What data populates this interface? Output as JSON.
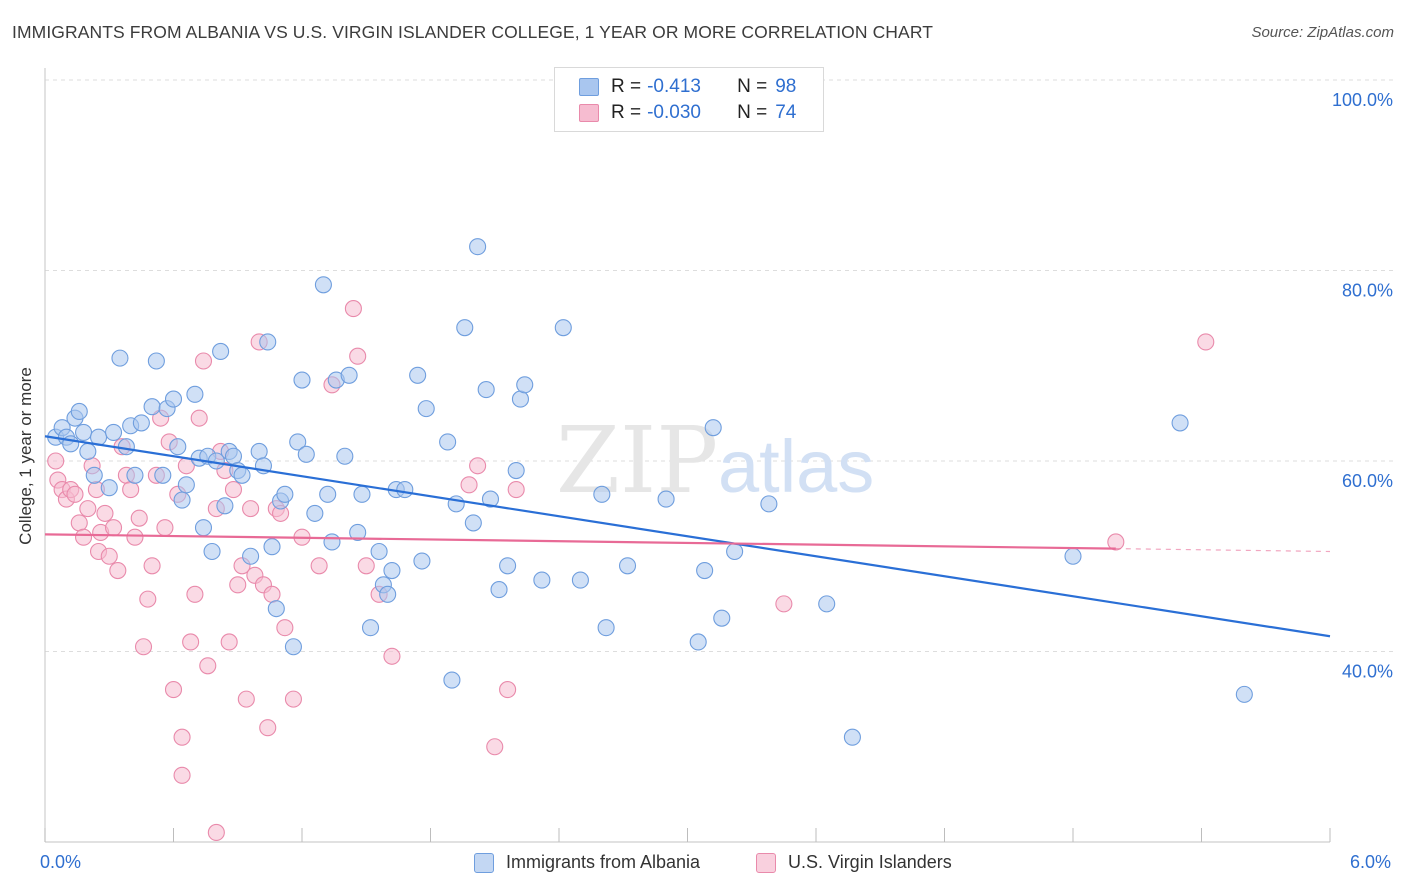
{
  "title": "IMMIGRANTS FROM ALBANIA VS U.S. VIRGIN ISLANDER COLLEGE, 1 YEAR OR MORE CORRELATION CHART",
  "source": "Source: ZipAtlas.com",
  "watermark": {
    "zip": "ZIP",
    "atlas": "atlas"
  },
  "legend": {
    "rows": [
      {
        "r_label": "R =",
        "r_value": "-0.413",
        "n_label": "N =",
        "n_value": "98"
      },
      {
        "r_label": "R =",
        "r_value": "-0.030",
        "n_label": "N =",
        "n_value": "74"
      }
    ]
  },
  "bottom_legend": [
    "Immigrants from Albania",
    "U.S. Virgin Islanders"
  ],
  "colors": {
    "blue_fill": "#a9c6ef",
    "blue_stroke": "#6f9ede",
    "blue_line": "#2a6fd6",
    "pink_fill": "#f6bcd0",
    "pink_stroke": "#e98aab",
    "pink_line": "#e86a96",
    "grid": "#dddddd",
    "axis_text": "#2f6fd0"
  },
  "chart_data": {
    "type": "scatter",
    "title": "IMMIGRANTS FROM ALBANIA VS U.S. VIRGIN ISLANDER COLLEGE, 1 YEAR OR MORE CORRELATION CHART",
    "xlabel": "",
    "ylabel": "College, 1 year or more",
    "xlim": [
      0,
      6
    ],
    "ylim": [
      20,
      100
    ],
    "x_tick_labels": [
      "0.0%",
      "6.0%"
    ],
    "y_ticks": [
      40,
      60,
      80,
      100
    ],
    "y_tick_labels": [
      "40.0%",
      "60.0%",
      "80.0%",
      "100.0%"
    ],
    "grid": true,
    "series": [
      {
        "name": "Immigrants from Albania",
        "color": "blue",
        "trend": {
          "x": [
            0,
            6
          ],
          "y": [
            62.6,
            41.6
          ]
        },
        "points": [
          [
            0.05,
            62.5
          ],
          [
            0.08,
            63.5
          ],
          [
            0.1,
            62.5
          ],
          [
            0.12,
            61.8
          ],
          [
            0.14,
            64.5
          ],
          [
            0.16,
            65.2
          ],
          [
            0.18,
            63
          ],
          [
            0.2,
            61
          ],
          [
            0.23,
            58.5
          ],
          [
            0.25,
            62.5
          ],
          [
            0.3,
            57.2
          ],
          [
            0.32,
            63
          ],
          [
            0.35,
            70.8
          ],
          [
            0.38,
            61.5
          ],
          [
            0.4,
            63.7
          ],
          [
            0.42,
            58.5
          ],
          [
            0.45,
            64
          ],
          [
            0.5,
            65.7
          ],
          [
            0.52,
            70.5
          ],
          [
            0.55,
            58.5
          ],
          [
            0.57,
            65.5
          ],
          [
            0.6,
            66.5
          ],
          [
            0.62,
            61.5
          ],
          [
            0.64,
            55.9
          ],
          [
            0.66,
            57.5
          ],
          [
            0.7,
            67
          ],
          [
            0.72,
            60.3
          ],
          [
            0.74,
            53
          ],
          [
            0.76,
            60.5
          ],
          [
            0.78,
            50.5
          ],
          [
            0.8,
            60
          ],
          [
            0.82,
            71.5
          ],
          [
            0.84,
            55.3
          ],
          [
            0.86,
            61
          ],
          [
            0.88,
            60.5
          ],
          [
            0.9,
            59
          ],
          [
            0.92,
            58.5
          ],
          [
            0.96,
            50
          ],
          [
            1.0,
            61
          ],
          [
            1.02,
            59.5
          ],
          [
            1.04,
            72.5
          ],
          [
            1.06,
            51
          ],
          [
            1.08,
            44.5
          ],
          [
            1.1,
            55.8
          ],
          [
            1.12,
            56.5
          ],
          [
            1.16,
            40.5
          ],
          [
            1.18,
            62
          ],
          [
            1.2,
            68.5
          ],
          [
            1.22,
            60.7
          ],
          [
            1.26,
            54.5
          ],
          [
            1.3,
            78.5
          ],
          [
            1.32,
            56.5
          ],
          [
            1.34,
            51.5
          ],
          [
            1.36,
            68.5
          ],
          [
            1.4,
            60.5
          ],
          [
            1.42,
            69
          ],
          [
            1.46,
            52.5
          ],
          [
            1.48,
            56.5
          ],
          [
            1.52,
            42.5
          ],
          [
            1.56,
            50.5
          ],
          [
            1.58,
            47
          ],
          [
            1.6,
            46
          ],
          [
            1.62,
            48.5
          ],
          [
            1.64,
            57
          ],
          [
            1.68,
            57
          ],
          [
            1.74,
            69
          ],
          [
            1.76,
            49.5
          ],
          [
            1.78,
            65.5
          ],
          [
            1.88,
            62
          ],
          [
            1.9,
            37
          ],
          [
            1.92,
            55.5
          ],
          [
            1.96,
            74
          ],
          [
            2.0,
            53.5
          ],
          [
            2.02,
            82.5
          ],
          [
            2.06,
            67.5
          ],
          [
            2.08,
            56
          ],
          [
            2.12,
            46.5
          ],
          [
            2.16,
            49
          ],
          [
            2.2,
            59
          ],
          [
            2.22,
            66.5
          ],
          [
            2.24,
            68
          ],
          [
            2.32,
            47.5
          ],
          [
            2.42,
            74
          ],
          [
            2.5,
            47.5
          ],
          [
            2.6,
            56.5
          ],
          [
            2.62,
            42.5
          ],
          [
            2.72,
            49
          ],
          [
            2.9,
            56
          ],
          [
            3.05,
            41
          ],
          [
            3.08,
            48.5
          ],
          [
            3.12,
            63.5
          ],
          [
            3.16,
            43.5
          ],
          [
            3.22,
            50.5
          ],
          [
            3.38,
            55.5
          ],
          [
            3.65,
            45
          ],
          [
            3.77,
            31
          ],
          [
            4.8,
            50
          ],
          [
            5.3,
            64
          ],
          [
            5.6,
            35.5
          ]
        ]
      },
      {
        "name": "U.S. Virgin Islanders",
        "color": "pink",
        "trend": {
          "x": [
            0,
            5.0
          ],
          "y": [
            52.3,
            50.8
          ]
        },
        "trend_dashed": {
          "x": [
            5.0,
            6.0
          ],
          "y": [
            50.8,
            50.5
          ]
        },
        "points": [
          [
            0.05,
            60
          ],
          [
            0.06,
            58
          ],
          [
            0.08,
            57
          ],
          [
            0.1,
            56
          ],
          [
            0.12,
            57
          ],
          [
            0.14,
            56.5
          ],
          [
            0.16,
            53.5
          ],
          [
            0.18,
            52
          ],
          [
            0.2,
            55
          ],
          [
            0.22,
            59.5
          ],
          [
            0.24,
            57
          ],
          [
            0.25,
            50.5
          ],
          [
            0.26,
            52.5
          ],
          [
            0.28,
            54.5
          ],
          [
            0.3,
            50
          ],
          [
            0.32,
            53
          ],
          [
            0.34,
            48.5
          ],
          [
            0.36,
            61.5
          ],
          [
            0.38,
            58.5
          ],
          [
            0.4,
            57
          ],
          [
            0.42,
            52
          ],
          [
            0.44,
            54
          ],
          [
            0.46,
            40.5
          ],
          [
            0.48,
            45.5
          ],
          [
            0.5,
            49
          ],
          [
            0.52,
            58.5
          ],
          [
            0.54,
            64.5
          ],
          [
            0.56,
            53
          ],
          [
            0.58,
            62
          ],
          [
            0.6,
            36
          ],
          [
            0.62,
            56.5
          ],
          [
            0.64,
            31
          ],
          [
            0.66,
            59.5
          ],
          [
            0.68,
            41
          ],
          [
            0.7,
            46
          ],
          [
            0.72,
            64.5
          ],
          [
            0.74,
            70.5
          ],
          [
            0.76,
            38.5
          ],
          [
            0.8,
            55
          ],
          [
            0.82,
            61
          ],
          [
            0.84,
            59
          ],
          [
            0.86,
            41
          ],
          [
            0.88,
            57
          ],
          [
            0.9,
            47
          ],
          [
            0.92,
            49
          ],
          [
            0.94,
            35
          ],
          [
            0.96,
            55
          ],
          [
            0.98,
            48
          ],
          [
            1.0,
            72.5
          ],
          [
            1.02,
            47
          ],
          [
            1.04,
            32
          ],
          [
            1.06,
            46
          ],
          [
            1.08,
            55
          ],
          [
            1.1,
            54.5
          ],
          [
            1.12,
            42.5
          ],
          [
            1.16,
            35
          ],
          [
            1.2,
            52
          ],
          [
            1.28,
            49
          ],
          [
            1.34,
            68
          ],
          [
            1.44,
            76
          ],
          [
            1.46,
            71
          ],
          [
            1.5,
            49
          ],
          [
            1.56,
            46
          ],
          [
            1.62,
            39.5
          ],
          [
            1.98,
            57.5
          ],
          [
            2.02,
            59.5
          ],
          [
            2.1,
            30
          ],
          [
            2.16,
            36
          ],
          [
            2.2,
            57
          ],
          [
            3.45,
            45
          ],
          [
            5.0,
            51.5
          ],
          [
            5.42,
            72.5
          ],
          [
            0.64,
            27
          ],
          [
            0.8,
            21
          ]
        ]
      }
    ]
  }
}
